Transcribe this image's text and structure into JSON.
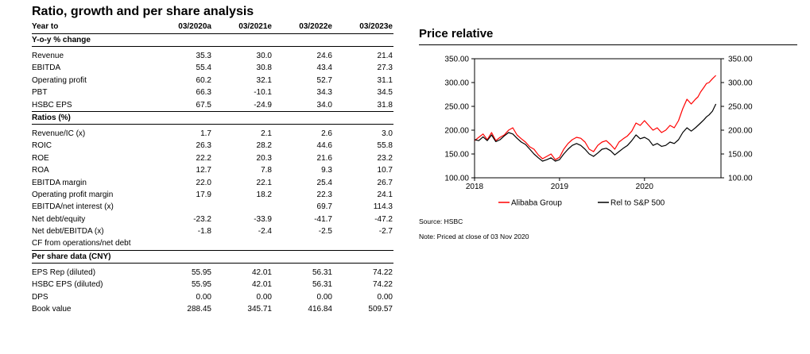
{
  "table": {
    "title": "Ratio, growth and per share analysis",
    "header": {
      "label": "Year to",
      "years": [
        "03/2020a",
        "03/2021e",
        "03/2022e",
        "03/2023e"
      ]
    },
    "sections": [
      {
        "title": "Y-o-y % change",
        "rows": [
          {
            "label": "Revenue",
            "values": [
              "35.3",
              "30.0",
              "24.6",
              "21.4"
            ]
          },
          {
            "label": "EBITDA",
            "values": [
              "55.4",
              "30.8",
              "43.4",
              "27.3"
            ]
          },
          {
            "label": "Operating profit",
            "values": [
              "60.2",
              "32.1",
              "52.7",
              "31.1"
            ]
          },
          {
            "label": "PBT",
            "values": [
              "66.3",
              "-10.1",
              "34.3",
              "34.5"
            ]
          },
          {
            "label": "HSBC EPS",
            "values": [
              "67.5",
              "-24.9",
              "34.0",
              "31.8"
            ]
          }
        ]
      },
      {
        "title": "Ratios (%)",
        "rows": [
          {
            "label": "Revenue/IC (x)",
            "values": [
              "1.7",
              "2.1",
              "2.6",
              "3.0"
            ]
          },
          {
            "label": "ROIC",
            "values": [
              "26.3",
              "28.2",
              "44.6",
              "55.8"
            ]
          },
          {
            "label": "ROE",
            "values": [
              "22.2",
              "20.3",
              "21.6",
              "23.2"
            ]
          },
          {
            "label": "ROA",
            "values": [
              "12.7",
              "7.8",
              "9.3",
              "10.7"
            ]
          },
          {
            "label": "EBITDA margin",
            "values": [
              "22.0",
              "22.1",
              "25.4",
              "26.7"
            ]
          },
          {
            "label": "Operating profit margin",
            "values": [
              "17.9",
              "18.2",
              "22.3",
              "24.1"
            ]
          },
          {
            "label": "EBITDA/net interest (x)",
            "values": [
              "",
              "",
              "69.7",
              "114.3"
            ]
          },
          {
            "label": "Net debt/equity",
            "values": [
              "-23.2",
              "-33.9",
              "-41.7",
              "-47.2"
            ]
          },
          {
            "label": "Net debt/EBITDA (x)",
            "values": [
              "-1.8",
              "-2.4",
              "-2.5",
              "-2.7"
            ]
          },
          {
            "label": "CF from operations/net debt",
            "values": [
              "",
              "",
              "",
              ""
            ]
          }
        ]
      },
      {
        "title": "Per share data (CNY)",
        "rows": [
          {
            "label": "EPS Rep (diluted)",
            "values": [
              "55.95",
              "42.01",
              "56.31",
              "74.22"
            ]
          },
          {
            "label": "HSBC EPS (diluted)",
            "values": [
              "55.95",
              "42.01",
              "56.31",
              "74.22"
            ]
          },
          {
            "label": "DPS",
            "values": [
              "0.00",
              "0.00",
              "0.00",
              "0.00"
            ]
          },
          {
            "label": "Book value",
            "values": [
              "288.45",
              "345.71",
              "416.84",
              "509.57"
            ]
          }
        ]
      }
    ]
  },
  "chart_title": "Price relative",
  "chart_data": {
    "type": "line",
    "y_ticks": [
      "350.00",
      "300.00",
      "250.00",
      "200.00",
      "150.00",
      "100.00"
    ],
    "x_ticks": [
      "2018",
      "2019",
      "2020"
    ],
    "ylim": [
      100,
      350
    ],
    "xlim": [
      2018.0,
      2020.9
    ],
    "grid": false,
    "legend_position": "bottom",
    "series": [
      {
        "name": "Alibaba Group",
        "color": "#ff0000",
        "x": [
          2018.0,
          2018.05,
          2018.1,
          2018.15,
          2018.2,
          2018.25,
          2018.3,
          2018.35,
          2018.4,
          2018.45,
          2018.5,
          2018.55,
          2018.6,
          2018.65,
          2018.7,
          2018.75,
          2018.8,
          2018.85,
          2018.9,
          2018.95,
          2019.0,
          2019.05,
          2019.1,
          2019.15,
          2019.2,
          2019.25,
          2019.3,
          2019.35,
          2019.4,
          2019.45,
          2019.5,
          2019.55,
          2019.6,
          2019.65,
          2019.7,
          2019.75,
          2019.8,
          2019.85,
          2019.9,
          2019.95,
          2020.0,
          2020.05,
          2020.1,
          2020.15,
          2020.2,
          2020.25,
          2020.3,
          2020.35,
          2020.4,
          2020.45,
          2020.5,
          2020.55,
          2020.6,
          2020.63,
          2020.66,
          2020.7,
          2020.73,
          2020.76,
          2020.8,
          2020.84
        ],
        "values": [
          178,
          185,
          192,
          180,
          195,
          178,
          185,
          190,
          200,
          205,
          190,
          182,
          175,
          165,
          160,
          148,
          140,
          145,
          150,
          138,
          143,
          160,
          172,
          180,
          185,
          183,
          175,
          160,
          155,
          168,
          175,
          178,
          170,
          160,
          175,
          182,
          188,
          198,
          215,
          210,
          220,
          210,
          200,
          205,
          195,
          200,
          210,
          205,
          220,
          245,
          265,
          255,
          265,
          270,
          280,
          290,
          298,
          300,
          308,
          315
        ]
      },
      {
        "name": "Rel to S&P 500",
        "color": "#000000",
        "x": [
          2018.0,
          2018.05,
          2018.1,
          2018.15,
          2018.2,
          2018.25,
          2018.3,
          2018.35,
          2018.4,
          2018.45,
          2018.5,
          2018.55,
          2018.6,
          2018.65,
          2018.7,
          2018.75,
          2018.8,
          2018.85,
          2018.9,
          2018.95,
          2019.0,
          2019.05,
          2019.1,
          2019.15,
          2019.2,
          2019.25,
          2019.3,
          2019.35,
          2019.4,
          2019.45,
          2019.5,
          2019.55,
          2019.6,
          2019.65,
          2019.7,
          2019.75,
          2019.8,
          2019.85,
          2019.9,
          2019.95,
          2020.0,
          2020.05,
          2020.1,
          2020.15,
          2020.2,
          2020.25,
          2020.3,
          2020.35,
          2020.4,
          2020.45,
          2020.5,
          2020.55,
          2020.6,
          2020.63,
          2020.66,
          2020.7,
          2020.73,
          2020.76,
          2020.8,
          2020.84
        ],
        "values": [
          180,
          178,
          186,
          178,
          190,
          176,
          180,
          188,
          195,
          192,
          183,
          175,
          170,
          160,
          150,
          142,
          135,
          138,
          142,
          135,
          138,
          150,
          160,
          168,
          172,
          168,
          160,
          150,
          145,
          152,
          160,
          162,
          157,
          148,
          155,
          162,
          168,
          178,
          190,
          182,
          185,
          180,
          168,
          172,
          166,
          168,
          175,
          172,
          180,
          195,
          205,
          198,
          205,
          210,
          215,
          222,
          228,
          232,
          240,
          255
        ]
      }
    ]
  },
  "source": "Source: HSBC",
  "note": "Note:  Priced at close of   03 Nov 2020"
}
